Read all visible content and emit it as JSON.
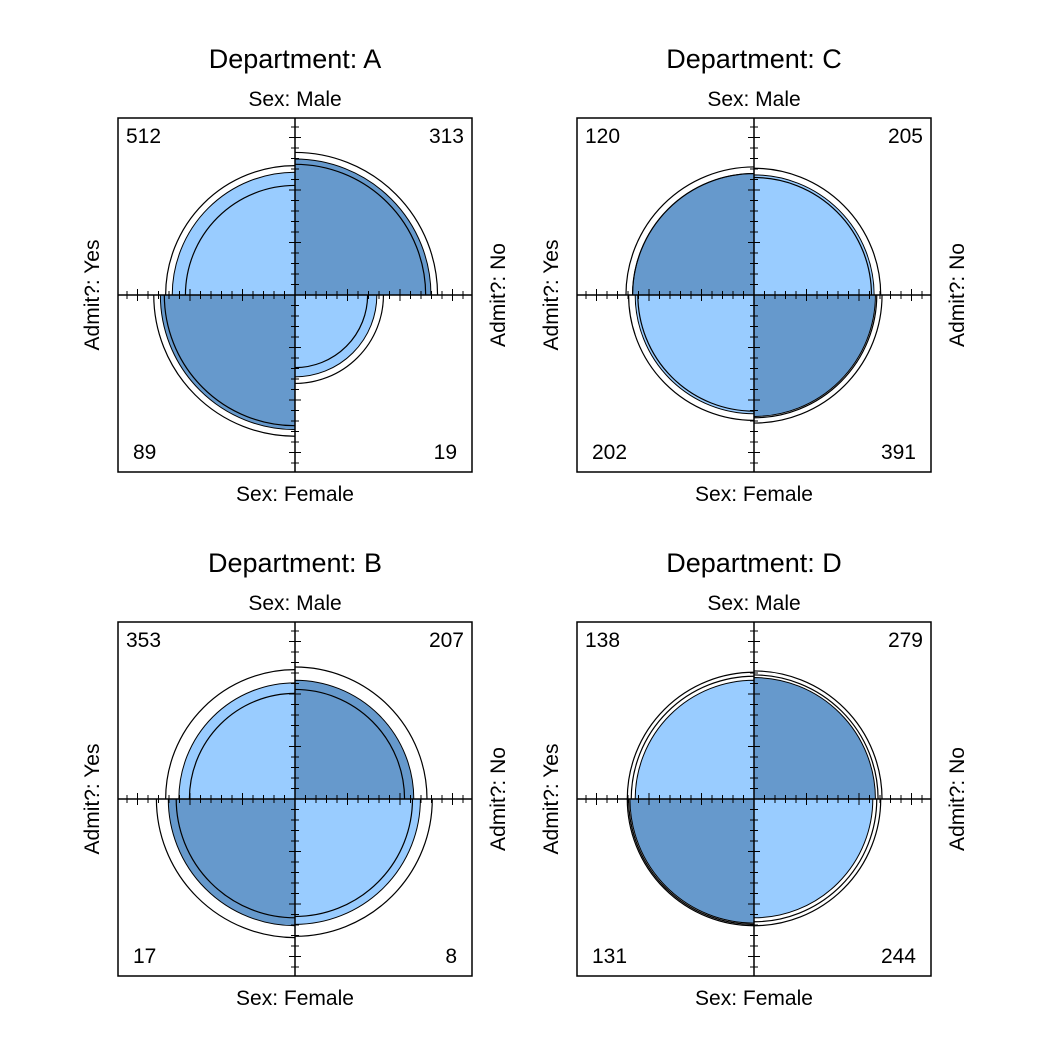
{
  "colors": {
    "shade_dark": "#6699CC",
    "shade_light": "#99CCFF",
    "stroke": "#000000",
    "background": "#FFFFFF"
  },
  "chart_data": [
    {
      "type": "fourfold",
      "title": "Department: A",
      "row_var": "Admit?",
      "col_var": "Sex",
      "top_label": "Sex: Male",
      "bottom_label": "Sex: Female",
      "left_label": "Admit?: Yes",
      "right_label": "Admit?: No",
      "cells": {
        "male_yes": 512,
        "male_no": 313,
        "female_yes": 89,
        "female_no": 19
      },
      "display_pct": {
        "male_yes": 93,
        "male_no": 103,
        "female_yes": 102,
        "female_no": 62
      },
      "shading": {
        "male_yes": "light",
        "male_no": "dark",
        "female_yes": "dark",
        "female_no": "light"
      },
      "ci_outer_pct": {
        "male_yes": 98,
        "male_no": 108,
        "female_yes": 107,
        "female_no": 67
      },
      "ci_inner_pct": {
        "male_yes": 83,
        "male_no": 99,
        "female_yes": 99,
        "female_no": 55
      }
    },
    {
      "type": "fourfold",
      "title": "Department: C",
      "row_var": "Admit?",
      "col_var": "Sex",
      "top_label": "Sex: Male",
      "bottom_label": "Sex: Female",
      "left_label": "Admit?: Yes",
      "right_label": "Admit?: No",
      "cells": {
        "male_yes": 120,
        "male_no": 205,
        "female_yes": 202,
        "female_no": 391
      },
      "display_pct": {
        "male_yes": 92,
        "male_no": 91,
        "female_yes": 90,
        "female_no": 92
      },
      "shading": {
        "male_yes": "dark",
        "male_no": "light",
        "female_yes": "light",
        "female_no": "dark"
      },
      "ci_outer_pct": {
        "male_yes": 97,
        "male_no": 96,
        "female_yes": 95,
        "female_no": 97
      },
      "ci_inner_pct": {
        "male_yes": 92,
        "male_no": 89,
        "female_yes": 88,
        "female_no": 93
      }
    },
    {
      "type": "fourfold",
      "title": "Department: B",
      "row_var": "Admit?",
      "col_var": "Sex",
      "top_label": "Sex: Male",
      "bottom_label": "Sex: Female",
      "left_label": "Admit?: Yes",
      "right_label": "Admit?: No",
      "cells": {
        "male_yes": 353,
        "male_no": 207,
        "female_yes": 17,
        "female_no": 8
      },
      "display_pct": {
        "male_yes": 88,
        "male_no": 90,
        "female_yes": 96,
        "female_no": 95
      },
      "shading": {
        "male_yes": "light",
        "male_no": "dark",
        "female_yes": "dark",
        "female_no": "light"
      },
      "ci_outer_pct": {
        "male_yes": 98,
        "male_no": 100,
        "female_yes": 105,
        "female_no": 104
      },
      "ci_inner_pct": {
        "male_yes": 80,
        "male_no": 83,
        "female_yes": 90,
        "female_no": 89
      }
    },
    {
      "type": "fourfold",
      "title": "Department: D",
      "row_var": "Admit?",
      "col_var": "Sex",
      "top_label": "Sex: Male",
      "bottom_label": "Sex: Female",
      "left_label": "Admit?: Yes",
      "right_label": "Admit?: No",
      "cells": {
        "male_yes": 138,
        "male_no": 279,
        "female_yes": 131,
        "female_no": 244
      },
      "display_pct": {
        "male_yes": 90,
        "male_no": 92,
        "female_yes": 94,
        "female_no": 90
      },
      "shading": {
        "male_yes": "light",
        "male_no": "dark",
        "female_yes": "dark",
        "female_no": "light"
      },
      "ci_outer_pct": {
        "male_yes": 96,
        "male_no": 97,
        "female_yes": 96,
        "female_no": 96
      },
      "ci_inner_pct": {
        "male_yes": 93,
        "male_no": 94,
        "female_yes": 95,
        "female_no": 93
      }
    }
  ]
}
